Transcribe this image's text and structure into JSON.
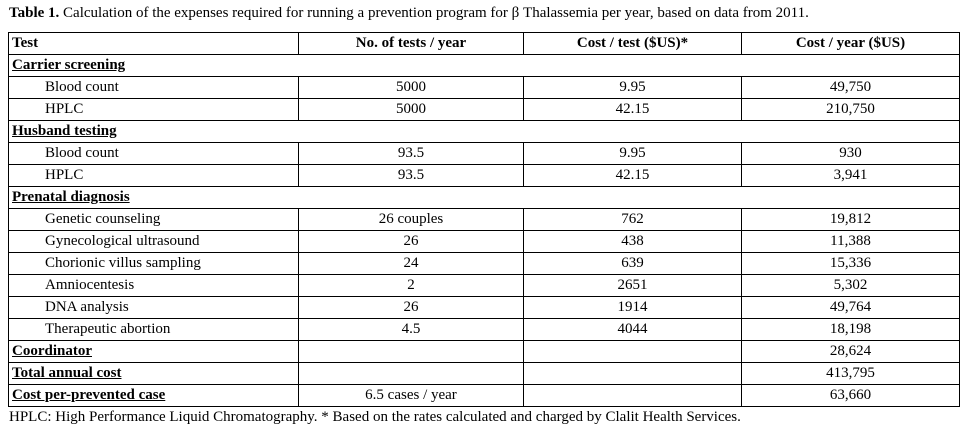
{
  "caption": {
    "label": "Table 1.",
    "text": " Calculation of the expenses required for running a prevention program for β Thalassemia per year, based on data from 2011."
  },
  "table": {
    "headers": [
      "Test",
      "No. of tests / year",
      "Cost / test ($US)*",
      "Cost / year ($US)"
    ],
    "sections": [
      {
        "title": "Carrier screening",
        "rows": [
          {
            "label": "Blood count",
            "tests": "5000",
            "cost_per_test": "9.95",
            "cost_per_year": "49,750"
          },
          {
            "label": "HPLC",
            "tests": "5000",
            "cost_per_test": "42.15",
            "cost_per_year": "210,750"
          }
        ]
      },
      {
        "title": "Husband testing",
        "rows": [
          {
            "label": "Blood count",
            "tests": "93.5",
            "cost_per_test": "9.95",
            "cost_per_year": "930"
          },
          {
            "label": "HPLC",
            "tests": "93.5",
            "cost_per_test": "42.15",
            "cost_per_year": "3,941"
          }
        ]
      },
      {
        "title": "Prenatal diagnosis",
        "rows": [
          {
            "label": "Genetic counseling",
            "tests": "26 couples",
            "cost_per_test": "762",
            "cost_per_year": "19,812"
          },
          {
            "label": "Gynecological ultrasound",
            "tests": "26",
            "cost_per_test": "438",
            "cost_per_year": "11,388"
          },
          {
            "label": "Chorionic villus sampling",
            "tests": "24",
            "cost_per_test": "639",
            "cost_per_year": "15,336"
          },
          {
            "label": "Amniocentesis",
            "tests": "2",
            "cost_per_test": "2651",
            "cost_per_year": "5,302"
          },
          {
            "label": "DNA analysis",
            "tests": "26",
            "cost_per_test": "1914",
            "cost_per_year": "49,764"
          },
          {
            "label": "Therapeutic abortion",
            "tests": "4.5",
            "cost_per_test": "4044",
            "cost_per_year": "18,198"
          }
        ]
      }
    ],
    "summary": [
      {
        "label": "Coordinator",
        "tests": "",
        "cost_per_test": "",
        "cost_per_year": "28,624"
      },
      {
        "label": "Total annual cost",
        "tests": "",
        "cost_per_test": "",
        "cost_per_year": "413,795"
      },
      {
        "label": "Cost per-prevented case",
        "tests": "6.5 cases / year",
        "cost_per_test": "",
        "cost_per_year": "63,660"
      }
    ]
  },
  "footnote": "HPLC: High Performance Liquid Chromatography. * Based on the rates calculated and charged by Clalit Health Services."
}
